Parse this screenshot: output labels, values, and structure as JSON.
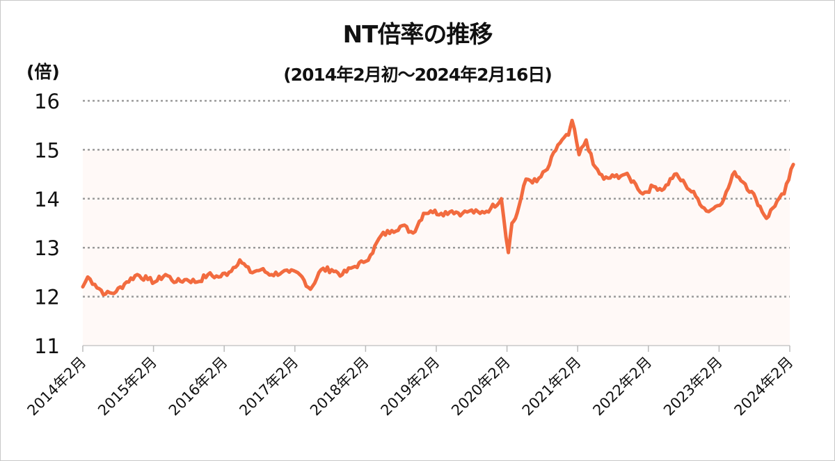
{
  "chart_data": {
    "type": "line",
    "title": "NT倍率の推移",
    "subtitle": "(2014年2月初〜2024年2月16日)",
    "ylabel": "(倍)",
    "xlabel": "",
    "ylim": [
      11,
      16
    ],
    "yticks": [
      11,
      12,
      13,
      14,
      15,
      16
    ],
    "xtick_labels": [
      "2014年2月",
      "2015年2月",
      "2016年2月",
      "2017年2月",
      "2018年2月",
      "2019年2月",
      "2020年2月",
      "2021年2月",
      "2022年2月",
      "2023年2月",
      "2024年2月"
    ],
    "grid": "horizontal dotted",
    "legend": "none",
    "line_color": "#f26b3f",
    "series": [
      {
        "name": "NT倍率",
        "x": [
          2014.08,
          2014.15,
          2014.25,
          2014.4,
          2014.55,
          2014.7,
          2014.85,
          2015.0,
          2015.1,
          2015.25,
          2015.4,
          2015.55,
          2015.7,
          2015.85,
          2016.0,
          2016.15,
          2016.3,
          2016.45,
          2016.6,
          2016.75,
          2016.9,
          2017.0,
          2017.15,
          2017.3,
          2017.45,
          2017.6,
          2017.75,
          2017.9,
          2018.05,
          2018.15,
          2018.3,
          2018.45,
          2018.6,
          2018.75,
          2018.9,
          2019.0,
          2019.15,
          2019.3,
          2019.45,
          2019.55,
          2019.7,
          2019.85,
          2020.0,
          2020.1,
          2020.15,
          2020.2,
          2020.25,
          2020.35,
          2020.5,
          2020.65,
          2020.8,
          2020.95,
          2021.0,
          2021.1,
          2021.2,
          2021.3,
          2021.45,
          2021.6,
          2021.75,
          2021.9,
          2022.0,
          2022.15,
          2022.3,
          2022.45,
          2022.6,
          2022.75,
          2022.9,
          2023.0,
          2023.15,
          2023.3,
          2023.45,
          2023.6,
          2023.75,
          2023.9,
          2024.0,
          2024.13
        ],
        "values": [
          12.2,
          12.4,
          12.25,
          12.05,
          12.1,
          12.3,
          12.45,
          12.35,
          12.3,
          12.45,
          12.3,
          12.35,
          12.3,
          12.45,
          12.4,
          12.5,
          12.75,
          12.5,
          12.55,
          12.45,
          12.5,
          12.5,
          12.45,
          12.15,
          12.55,
          12.55,
          12.45,
          12.6,
          12.7,
          12.85,
          13.25,
          13.35,
          13.45,
          13.3,
          13.7,
          13.75,
          13.7,
          13.75,
          13.7,
          13.75,
          13.7,
          13.8,
          14.0,
          12.9,
          13.5,
          13.6,
          13.85,
          14.4,
          14.35,
          14.6,
          15.1,
          15.3,
          15.6,
          14.9,
          15.2,
          14.7,
          14.4,
          14.45,
          14.5,
          14.3,
          14.1,
          14.25,
          14.2,
          14.5,
          14.3,
          14.05,
          13.75,
          13.8,
          14.0,
          14.55,
          14.3,
          14.0,
          13.6,
          13.95,
          14.1,
          14.7
        ]
      }
    ]
  }
}
